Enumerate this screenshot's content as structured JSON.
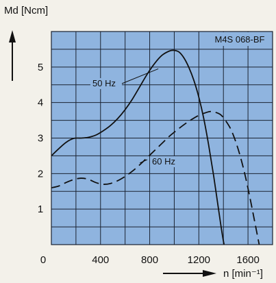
{
  "chart_data": {
    "type": "line",
    "title": "",
    "xlabel": "n [min⁻¹]",
    "ylabel": "Md [Ncm]",
    "model_label": "M4S 068-BF",
    "xlim": [
      0,
      1800
    ],
    "ylim": [
      0,
      6
    ],
    "x_ticks": [
      0,
      400,
      800,
      1200,
      1600
    ],
    "y_ticks": [
      1,
      2,
      3,
      4,
      5
    ],
    "grid": true,
    "colors": {
      "plot_bg": "#8fb4df",
      "grid": "#1a2230",
      "line": "#111111",
      "page_bg": "#f3f1ea"
    },
    "series": [
      {
        "name": "50 Hz",
        "style": "solid",
        "x": [
          0,
          60,
          120,
          180,
          240,
          300,
          360,
          420,
          480,
          540,
          600,
          660,
          720,
          780,
          840,
          900,
          960,
          1000,
          1040,
          1080,
          1120,
          1160,
          1200,
          1240,
          1280,
          1320,
          1360,
          1400,
          1440
        ],
        "y": [
          2.5,
          2.7,
          2.88,
          2.99,
          3.0,
          3.02,
          3.08,
          3.2,
          3.35,
          3.55,
          3.8,
          4.1,
          4.45,
          4.8,
          5.1,
          5.33,
          5.45,
          5.47,
          5.42,
          5.25,
          4.98,
          4.62,
          4.15,
          3.55,
          2.8,
          1.95,
          1.0,
          0.1,
          -0.5
        ]
      },
      {
        "name": "60 Hz",
        "style": "dashed",
        "x": [
          0,
          60,
          120,
          180,
          240,
          300,
          360,
          420,
          480,
          540,
          600,
          660,
          720,
          780,
          840,
          900,
          960,
          1020,
          1080,
          1140,
          1200,
          1260,
          1300,
          1340,
          1380,
          1420,
          1460,
          1500,
          1540,
          1580,
          1620,
          1660,
          1700,
          1730
        ],
        "y": [
          1.6,
          1.65,
          1.75,
          1.83,
          1.87,
          1.84,
          1.75,
          1.7,
          1.72,
          1.8,
          1.92,
          2.07,
          2.25,
          2.45,
          2.65,
          2.85,
          3.05,
          3.22,
          3.38,
          3.52,
          3.64,
          3.72,
          3.75,
          3.72,
          3.65,
          3.48,
          3.25,
          2.9,
          2.45,
          1.9,
          1.25,
          0.55,
          -0.15,
          -0.6
        ]
      }
    ],
    "annotations": [
      {
        "text": "50 Hz",
        "points_to": [
          870,
          4.95
        ]
      },
      {
        "text": "60 Hz",
        "points_to": [
          720,
          2.3
        ]
      }
    ]
  }
}
